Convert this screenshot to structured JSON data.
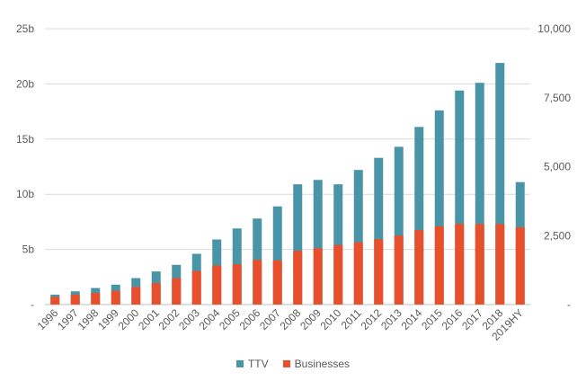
{
  "chart_data": {
    "type": "bar",
    "stacked": "overlapping",
    "categories": [
      "1996",
      "1997",
      "1998",
      "1999",
      "2000",
      "2001",
      "2002",
      "2003",
      "2004",
      "2005",
      "2006",
      "2007",
      "2008",
      "2009",
      "2010",
      "2011",
      "2012",
      "2013",
      "2014",
      "2015",
      "2016",
      "2017",
      "2018",
      "2019HY"
    ],
    "series": [
      {
        "name": "TTV",
        "axis": "left",
        "color": "#4a94a8",
        "values": [
          0.9,
          1.2,
          1.5,
          1.8,
          2.4,
          3.0,
          3.6,
          4.6,
          5.9,
          6.9,
          7.8,
          8.9,
          10.9,
          11.3,
          10.9,
          12.2,
          13.3,
          14.3,
          16.1,
          17.6,
          19.4,
          20.1,
          21.9,
          11.1
        ]
      },
      {
        "name": "Businesses",
        "axis": "right",
        "color": "#e8502d",
        "values": [
          280,
          360,
          420,
          500,
          640,
          780,
          960,
          1220,
          1420,
          1460,
          1620,
          1600,
          1950,
          2040,
          2160,
          2260,
          2370,
          2500,
          2700,
          2840,
          2930,
          2920,
          2920,
          2800
        ]
      }
    ],
    "y_left": {
      "ylim": [
        0,
        25
      ],
      "ticks": [
        "-",
        "5b",
        "10b",
        "15b",
        "20b",
        "25b"
      ]
    },
    "y_right": {
      "ylim": [
        0,
        10000
      ],
      "ticks": [
        "-",
        "2,500",
        "5,000",
        "7,500",
        "10,000"
      ]
    },
    "grid": true,
    "legend_position": "bottom"
  }
}
